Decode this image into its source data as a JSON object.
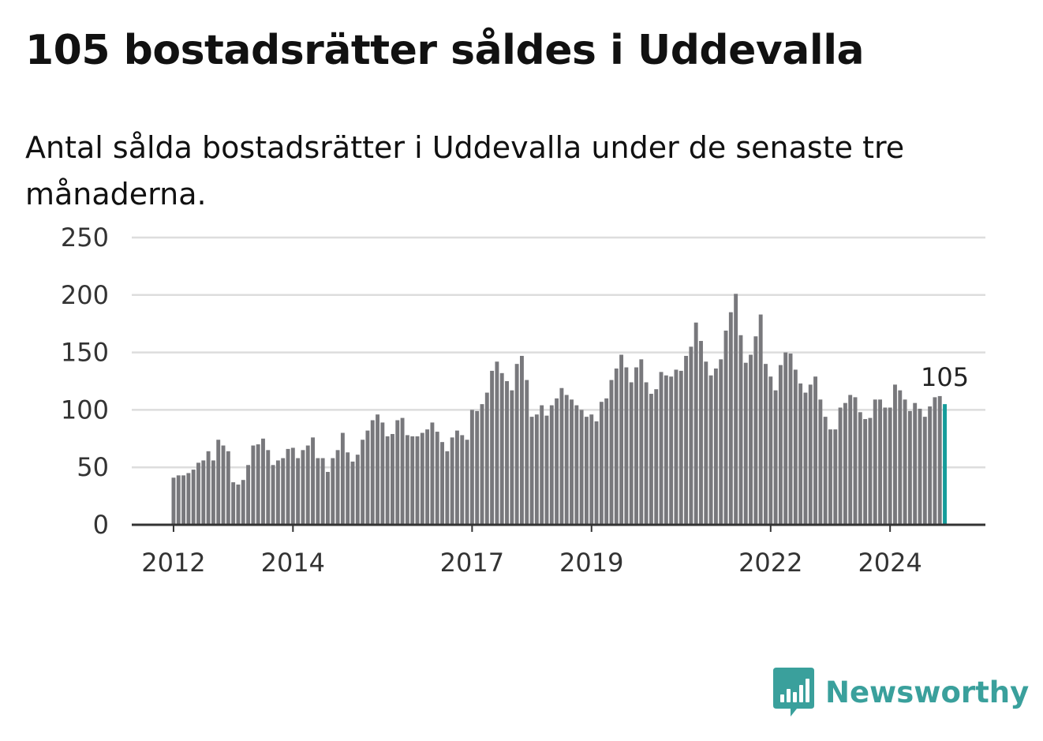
{
  "title": "105 bostadsrätter såldes i Uddevalla",
  "subtitle": "Antal sålda bostadsrätter i Uddevalla under de senaste tre månaderna.",
  "brand": {
    "name": "Newsworthy",
    "logo_icon": "newsworthy-bar-chart-logo-icon",
    "color": "#3aa09c"
  },
  "colors": {
    "bar": "#78787c",
    "highlight": "#159c9a",
    "grid": "#dddddd",
    "axis": "#333333"
  },
  "chart_data": {
    "type": "bar",
    "x_start": "2012-01",
    "x_interval": "month",
    "ylim": [
      0,
      250
    ],
    "yticks": [
      0,
      50,
      100,
      150,
      200,
      250
    ],
    "xticks": [
      {
        "label": "2012",
        "index": 0
      },
      {
        "label": "2014",
        "index": 24
      },
      {
        "label": "2017",
        "index": 60
      },
      {
        "label": "2019",
        "index": 84
      },
      {
        "label": "2022",
        "index": 120
      },
      {
        "label": "2024",
        "index": 144
      }
    ],
    "grid": true,
    "xlabel": "",
    "ylabel": "",
    "highlight_last": true,
    "last_label": "105",
    "values": [
      41,
      43,
      43,
      45,
      48,
      54,
      56,
      64,
      56,
      74,
      69,
      64,
      37,
      35,
      39,
      52,
      69,
      70,
      75,
      65,
      52,
      56,
      58,
      66,
      67,
      58,
      65,
      69,
      76,
      58,
      58,
      46,
      58,
      65,
      80,
      63,
      55,
      61,
      74,
      82,
      91,
      96,
      89,
      77,
      79,
      91,
      93,
      78,
      77,
      77,
      80,
      83,
      89,
      81,
      72,
      64,
      76,
      82,
      78,
      74,
      100,
      99,
      105,
      115,
      134,
      142,
      132,
      125,
      117,
      140,
      147,
      126,
      94,
      96,
      104,
      95,
      104,
      110,
      119,
      113,
      109,
      104,
      100,
      94,
      96,
      90,
      107,
      110,
      126,
      136,
      148,
      137,
      124,
      137,
      144,
      124,
      114,
      118,
      133,
      130,
      129,
      135,
      134,
      147,
      155,
      176,
      160,
      142,
      130,
      136,
      144,
      169,
      185,
      201,
      165,
      141,
      148,
      164,
      183,
      140,
      129,
      117,
      139,
      150,
      149,
      135,
      123,
      115,
      122,
      129,
      109,
      94,
      83,
      83,
      102,
      106,
      113,
      111,
      98,
      92,
      93,
      109,
      109,
      102,
      102,
      122,
      117,
      109,
      99,
      106,
      101,
      94,
      103,
      111,
      112,
      105
    ]
  }
}
